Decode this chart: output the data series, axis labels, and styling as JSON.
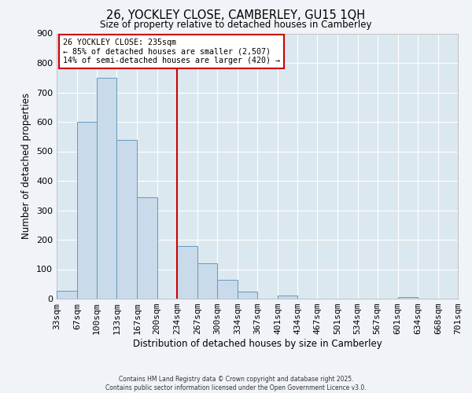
{
  "title": "26, YOCKLEY CLOSE, CAMBERLEY, GU15 1QH",
  "subtitle": "Size of property relative to detached houses in Camberley",
  "xlabel": "Distribution of detached houses by size in Camberley",
  "ylabel": "Number of detached properties",
  "bar_color": "#c9daea",
  "bar_edge_color": "#6699bb",
  "background_color": "#dce8f0",
  "grid_color": "#ffffff",
  "vline_x": 234,
  "vline_color": "#cc0000",
  "annotation_text": "26 YOCKLEY CLOSE: 235sqm\n← 85% of detached houses are smaller (2,507)\n14% of semi-detached houses are larger (420) →",
  "annotation_box_color": "#ffffff",
  "annotation_box_edge_color": "#cc0000",
  "bin_edges": [
    33,
    67,
    100,
    133,
    167,
    200,
    234,
    267,
    300,
    334,
    367,
    401,
    434,
    467,
    501,
    534,
    567,
    601,
    634,
    668,
    701
  ],
  "bin_heights": [
    27,
    600,
    750,
    540,
    345,
    0,
    178,
    120,
    65,
    25,
    0,
    10,
    0,
    0,
    0,
    0,
    0,
    5,
    0,
    0
  ],
  "tick_labels": [
    "33sqm",
    "67sqm",
    "100sqm",
    "133sqm",
    "167sqm",
    "200sqm",
    "234sqm",
    "267sqm",
    "300sqm",
    "334sqm",
    "367sqm",
    "401sqm",
    "434sqm",
    "467sqm",
    "501sqm",
    "534sqm",
    "567sqm",
    "601sqm",
    "634sqm",
    "668sqm",
    "701sqm"
  ],
  "ylim": [
    0,
    900
  ],
  "yticks": [
    0,
    100,
    200,
    300,
    400,
    500,
    600,
    700,
    800,
    900
  ],
  "footer_line1": "Contains HM Land Registry data © Crown copyright and database right 2025.",
  "footer_line2": "Contains public sector information licensed under the Open Government Licence v3.0."
}
